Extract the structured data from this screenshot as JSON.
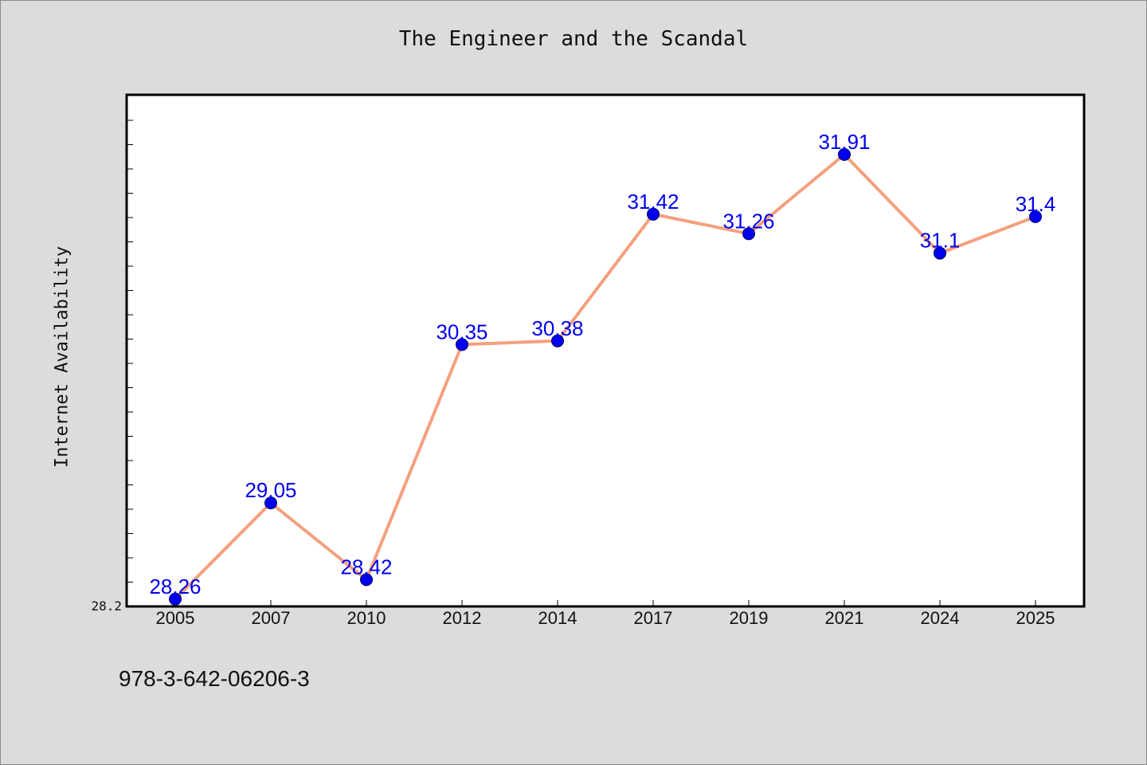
{
  "chart_data": {
    "type": "line",
    "title": "The Engineer and the Scandal",
    "xlabel": "",
    "ylabel": "Internet Availability",
    "categories": [
      "2005",
      "2007",
      "2010",
      "2012",
      "2014",
      "2017",
      "2019",
      "2021",
      "2024",
      "2025"
    ],
    "series": [
      {
        "values": [
          28.26,
          29.05,
          28.42,
          30.35,
          30.38,
          31.42,
          31.26,
          31.91,
          31.1,
          31.4
        ],
        "labels": [
          "28.26",
          "29.05",
          "28.42",
          "30.35",
          "30.38",
          "31.42",
          "31.26",
          "31.91",
          "31.1",
          "31.4"
        ]
      }
    ],
    "y_min_label": "28.2",
    "ylim": [
      28.2,
      32.4
    ],
    "grid": false,
    "legend": "none",
    "colors": {
      "line": "#f4a07e",
      "marker": "#0000ee",
      "marker_edge": "#000066",
      "data_label": "#0000ee",
      "background": "#dcdcdc",
      "plot_area": "#ffffff"
    }
  },
  "footer": {
    "code": "978-3-642-06206-3"
  }
}
